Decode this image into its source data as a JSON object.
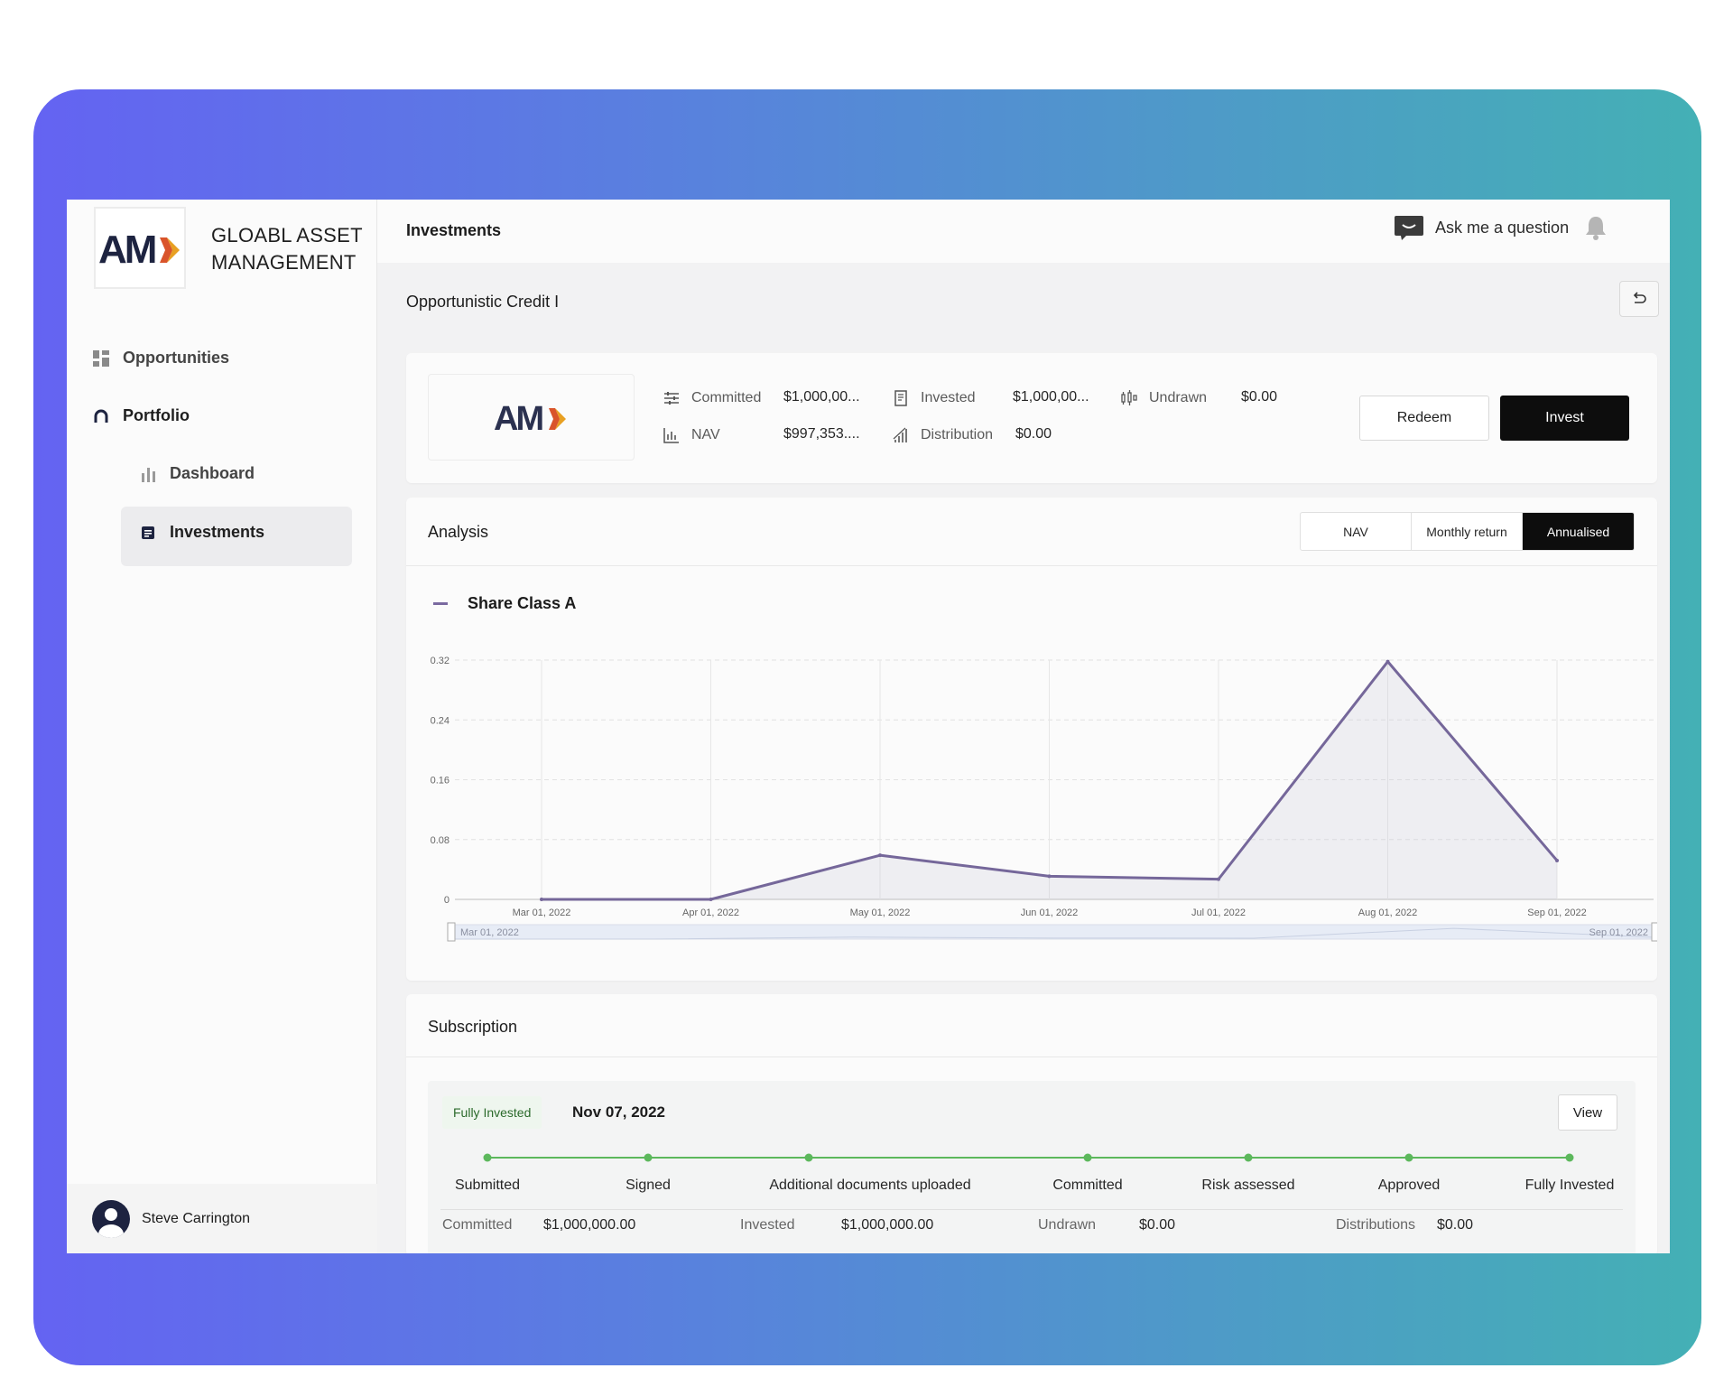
{
  "brand": {
    "line1": "GLOABL ASSET",
    "line2": "MANAGEMENT"
  },
  "sidebar": {
    "items": [
      {
        "label": "Opportunities"
      },
      {
        "label": "Portfolio"
      },
      {
        "label": "Dashboard"
      },
      {
        "label": "Investments"
      }
    ],
    "user": "Steve Carrington"
  },
  "header": {
    "title": "Investments",
    "ask": "Ask me a question"
  },
  "fund": {
    "name": "Opportunistic Credit I",
    "stats": [
      {
        "label": "Committed",
        "value": "$1,000,00...",
        "icon": "sliders-icon"
      },
      {
        "label": "Invested",
        "value": "$1,000,00...",
        "icon": "document-icon"
      },
      {
        "label": "Undrawn",
        "value": "$0.00",
        "icon": "candlestick-icon"
      },
      {
        "label": "NAV",
        "value": "$997,353....",
        "icon": "bar-chart-icon"
      },
      {
        "label": "Distribution",
        "value": "$0.00",
        "icon": "signal-icon"
      }
    ],
    "redeem_label": "Redeem",
    "invest_label": "Invest"
  },
  "analysis": {
    "title": "Analysis",
    "tabs": [
      "NAV",
      "Monthly return",
      "Annualised"
    ],
    "active_tab": "Annualised",
    "series_name": "Share Class A",
    "range_start": "Mar 01, 2022",
    "range_end": "Sep 01, 2022"
  },
  "chart_data": {
    "type": "area",
    "x": [
      "Mar 01, 2022",
      "Apr 01, 2022",
      "May 01, 2022",
      "Jun 01, 2022",
      "Jul 01, 2022",
      "Aug 01, 2022",
      "Sep 01, 2022"
    ],
    "series": [
      {
        "name": "Share Class A",
        "values": [
          0.0,
          0.0,
          0.059,
          0.031,
          0.027,
          0.318,
          0.052
        ]
      }
    ],
    "yticks": [
      "0",
      "0.08",
      "0.16",
      "0.24",
      "0.32"
    ],
    "ylim": [
      0,
      0.32
    ],
    "grid": true,
    "color": "#75679a"
  },
  "subscription": {
    "title": "Subscription",
    "status": "Fully Invested",
    "date": "Nov 07, 2022",
    "view_label": "View",
    "steps": [
      "Submitted",
      "Signed",
      "Additional documents uploaded",
      "Committed",
      "Risk assessed",
      "Approved",
      "Fully Invested"
    ],
    "summary": [
      {
        "label": "Committed",
        "value": "$1,000,000.00"
      },
      {
        "label": "Invested",
        "value": "$1,000,000.00"
      },
      {
        "label": "Undrawn",
        "value": "$0.00"
      },
      {
        "label": "Distributions",
        "value": "$0.00"
      }
    ],
    "step_color": "#5cb85c"
  }
}
